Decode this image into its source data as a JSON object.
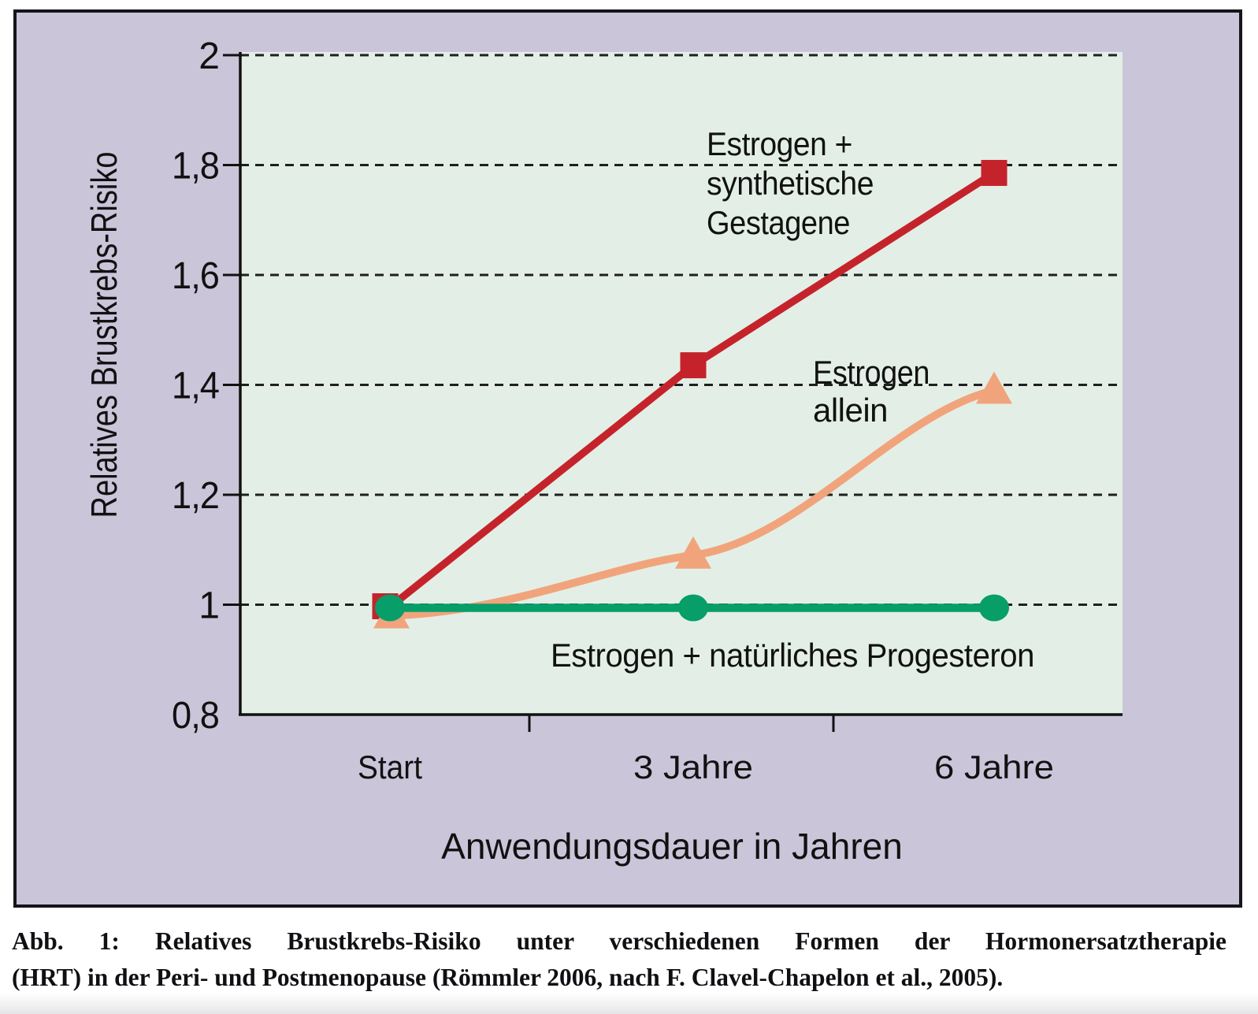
{
  "figure": {
    "caption_line1": "Abb. 1: Relatives Brustkrebs-Risiko unter verschiedenen Formen der Hormonersatztherapie",
    "caption_line2": "(HRT) in der Peri- und Postmenopause (Römmler 2006, nach F. Clavel-Chapelon et al., 2005)."
  },
  "chart_data": {
    "type": "line",
    "title": "",
    "categories": [
      "Start",
      "3 Jahre",
      "6 Jahre"
    ],
    "xlabel": "Anwendungsdauer in Jahren",
    "ylabel": "Relatives Brustkrebs-Risiko",
    "ylim": [
      0.8,
      2.0
    ],
    "yticks": [
      2,
      1.8,
      1.6,
      1.4,
      1.2,
      1,
      0.8
    ],
    "ytick_labels": [
      "2",
      "1,8",
      "1,6",
      "1,4",
      "1,2",
      "1",
      "0,8"
    ],
    "grid": "horizontal dashed gridlines at 1 to 2, axis frame only left/bottom",
    "legend_position": "inline annotations next to each line",
    "series": [
      {
        "name": "Estrogen + synthetische Gestagene",
        "values": [
          1.0,
          1.44,
          1.79
        ],
        "color": "#c5232b",
        "marker": "square",
        "label_lines": [
          "Estrogen +",
          "synthetische",
          "Gestagene"
        ]
      },
      {
        "name": "Estrogen allein",
        "values": [
          0.98,
          1.09,
          1.39
        ],
        "color": "#f1a47c",
        "marker": "triangle",
        "label_lines": [
          "Estrogen",
          "allein"
        ]
      },
      {
        "name": "Estrogen + natürliches Progesteron",
        "values": [
          1.0,
          1.0,
          1.0
        ],
        "color": "#079e69",
        "marker": "circle",
        "label_lines": [
          "Estrogen + natürliches Progesteron"
        ]
      }
    ],
    "colors": {
      "frame_background": "#cac5d9",
      "plot_background": "#e3efe6",
      "axis": "#111111"
    }
  }
}
